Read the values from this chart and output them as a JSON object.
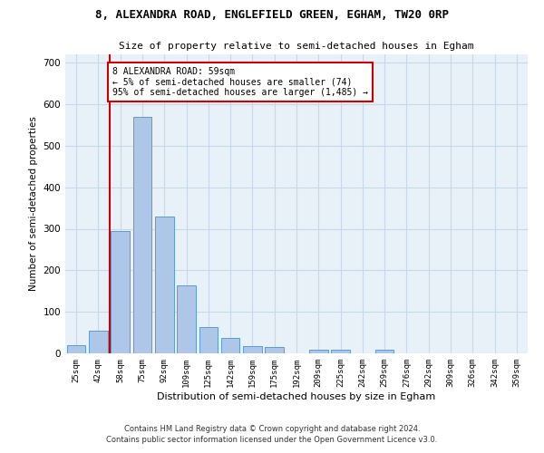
{
  "title1": "8, ALEXANDRA ROAD, ENGLEFIELD GREEN, EGHAM, TW20 0RP",
  "title2": "Size of property relative to semi-detached houses in Egham",
  "xlabel": "Distribution of semi-detached houses by size in Egham",
  "ylabel": "Number of semi-detached properties",
  "categories": [
    "25sqm",
    "42sqm",
    "58sqm",
    "75sqm",
    "92sqm",
    "109sqm",
    "125sqm",
    "142sqm",
    "159sqm",
    "175sqm",
    "192sqm",
    "209sqm",
    "225sqm",
    "242sqm",
    "259sqm",
    "276sqm",
    "292sqm",
    "309sqm",
    "326sqm",
    "342sqm",
    "359sqm"
  ],
  "values": [
    20,
    55,
    295,
    570,
    330,
    163,
    63,
    37,
    18,
    15,
    0,
    8,
    8,
    0,
    8,
    0,
    0,
    0,
    0,
    0,
    0
  ],
  "bar_color": "#aec6e8",
  "bar_edge_color": "#5b9bd5",
  "annotation_text": "8 ALEXANDRA ROAD: 59sqm\n← 5% of semi-detached houses are smaller (74)\n95% of semi-detached houses are larger (1,485) →",
  "annotation_box_color": "#ffffff",
  "annotation_box_edge": "#cc0000",
  "vline_color": "#cc0000",
  "footer1": "Contains HM Land Registry data © Crown copyright and database right 2024.",
  "footer2": "Contains public sector information licensed under the Open Government Licence v3.0.",
  "bg_color": "#ffffff",
  "ax_bg_color": "#e8f0f8",
  "grid_color": "#c8d8e8",
  "ylim": [
    0,
    720
  ],
  "yticks": [
    0,
    100,
    200,
    300,
    400,
    500,
    600,
    700
  ]
}
